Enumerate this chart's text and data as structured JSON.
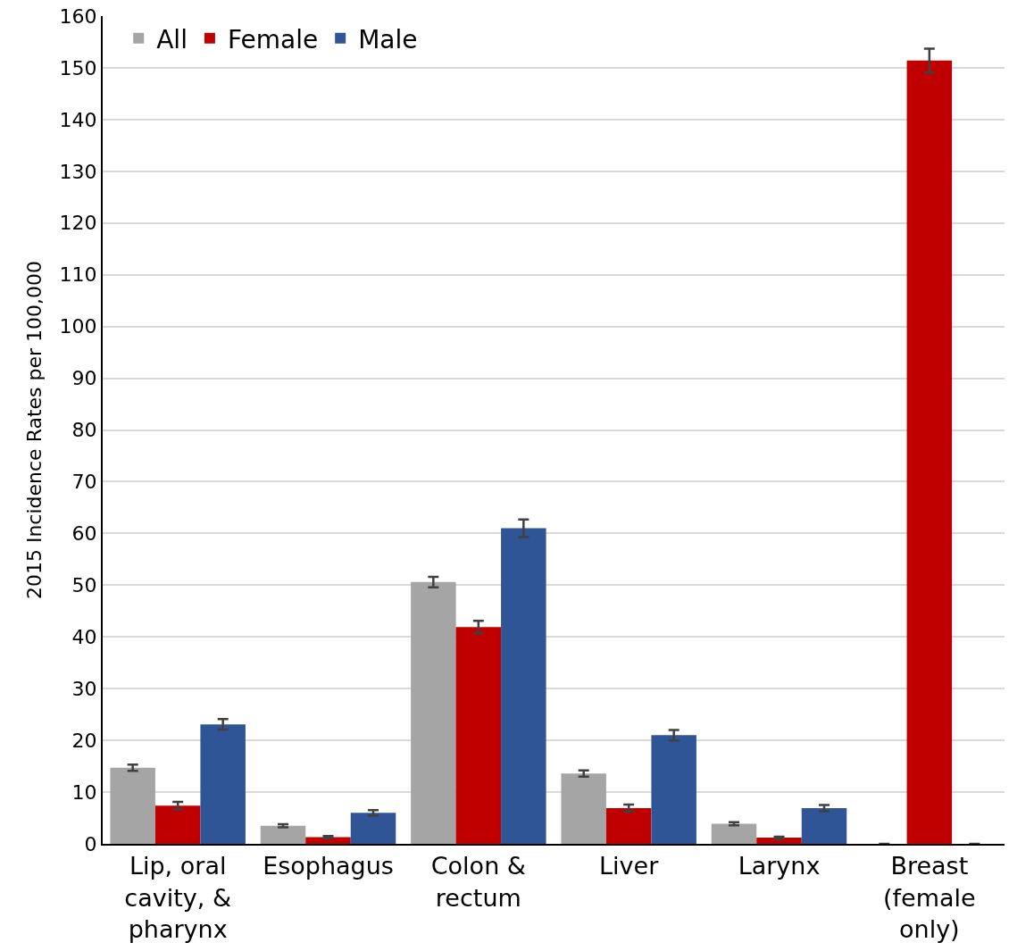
{
  "chart_data": {
    "type": "bar",
    "ylabel": "2015 Incidence Rates per 100,000",
    "categories": [
      "Lip, oral cavity, & pharynx",
      "Esophagus",
      "Colon & rectum",
      "Liver",
      "Larynx",
      "Breast (female only)"
    ],
    "series": [
      {
        "name": "All",
        "color": "#a5a5a5",
        "values": [
          14.7,
          3.5,
          50.6,
          13.6,
          3.9,
          0
        ],
        "errors": [
          0.6,
          0.3,
          1.0,
          0.6,
          0.3,
          null
        ]
      },
      {
        "name": "Female",
        "color": "#c00000",
        "values": [
          7.4,
          1.3,
          41.9,
          6.9,
          1.2,
          151.4
        ],
        "errors": [
          0.7,
          0.2,
          1.2,
          0.7,
          0.2,
          2.3
        ]
      },
      {
        "name": "Male",
        "color": "#2f5597",
        "values": [
          23.1,
          6.0,
          61.0,
          21.0,
          6.9,
          0
        ],
        "errors": [
          1.0,
          0.5,
          1.7,
          1.0,
          0.6,
          null
        ]
      }
    ],
    "ylim": [
      0,
      160
    ],
    "yticks": [
      0,
      10,
      20,
      30,
      40,
      50,
      60,
      70,
      80,
      90,
      100,
      110,
      120,
      130,
      140,
      150,
      160
    ],
    "grid": "y",
    "legend": "top left"
  }
}
